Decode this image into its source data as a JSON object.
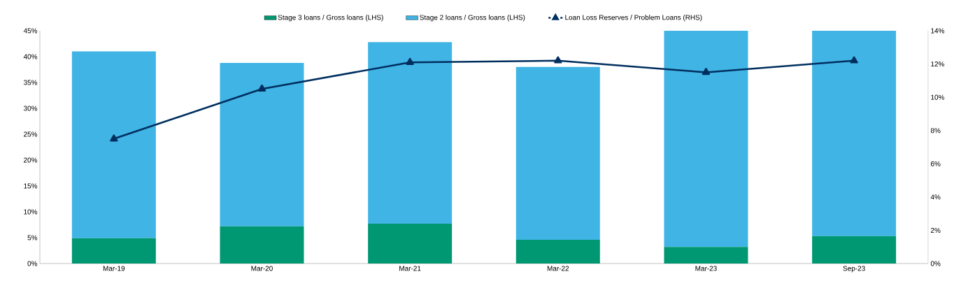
{
  "chart_data": {
    "type": "bar",
    "stacked": true,
    "categories": [
      "Mar-19",
      "Mar-20",
      "Mar-21",
      "Mar-22",
      "Mar-23",
      "Sep-23"
    ],
    "series": [
      {
        "name": "Stage 3 loans / Gross loans (LHS)",
        "color": "#009872",
        "values": [
          4.9,
          7.2,
          7.7,
          4.6,
          3.2,
          5.3
        ]
      },
      {
        "name": "Stage 2 loans / Gross loans (LHS)",
        "color": "#41b4e6",
        "values": [
          36.1,
          31.6,
          35.1,
          33.4,
          41.8,
          39.7
        ]
      },
      {
        "name": "Loan Loss Reserves / Problem Loans (RHS)",
        "type": "line",
        "axis": "y2",
        "marker": "triangle",
        "color": "#002f5f",
        "values": [
          7.5,
          10.5,
          12.1,
          12.2,
          11.5,
          12.2
        ]
      }
    ],
    "ylim": [
      0,
      45
    ],
    "yticks": [
      {
        "value": 0,
        "label": "0%"
      },
      {
        "value": 5,
        "label": "5%"
      },
      {
        "value": 10,
        "label": "10%"
      },
      {
        "value": 15,
        "label": "15%"
      },
      {
        "value": 20,
        "label": "20%"
      },
      {
        "value": 25,
        "label": "25%"
      },
      {
        "value": 30,
        "label": "30%"
      },
      {
        "value": 35,
        "label": "35%"
      },
      {
        "value": 40,
        "label": "40%"
      },
      {
        "value": 45,
        "label": "45%"
      }
    ],
    "y2lim": [
      0,
      14
    ],
    "y2ticks": [
      {
        "value": 0,
        "label": "0%"
      },
      {
        "value": 2,
        "label": "2%"
      },
      {
        "value": 4,
        "label": "4%"
      },
      {
        "value": 6,
        "label": "6%"
      },
      {
        "value": 8,
        "label": "8%"
      },
      {
        "value": 10,
        "label": "10%"
      },
      {
        "value": 12,
        "label": "12%"
      },
      {
        "value": 14,
        "label": "14%"
      }
    ],
    "legend": "top",
    "grid": false
  }
}
